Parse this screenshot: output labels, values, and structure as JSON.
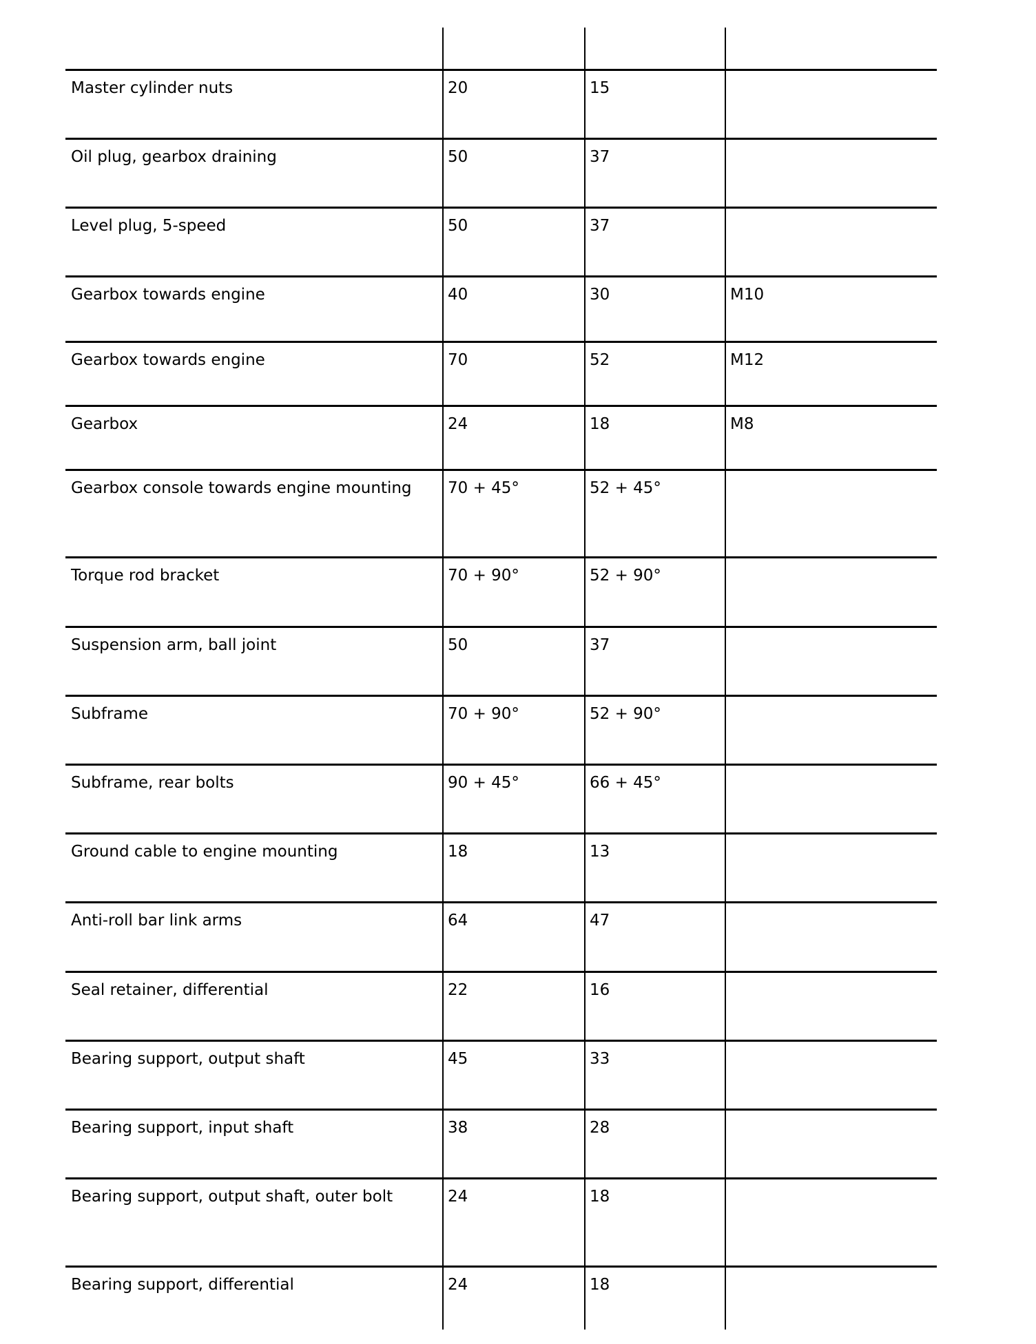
{
  "table": {
    "rows": [
      {
        "item": "Master cylinder nuts",
        "nm": "20",
        "lbft": "15",
        "note": ""
      },
      {
        "item": "Oil plug, gearbox draining",
        "nm": "50",
        "lbft": "37",
        "note": ""
      },
      {
        "item": "Level plug, 5-speed",
        "nm": "50",
        "lbft": "37",
        "note": ""
      },
      {
        "item": "Gearbox towards engine",
        "nm": "40",
        "lbft": "30",
        "note": "M10"
      },
      {
        "item": "Gearbox towards engine",
        "nm": "70",
        "lbft": "52",
        "note": "M12"
      },
      {
        "item": "Gearbox",
        "nm": "24",
        "lbft": "18",
        "note": "M8"
      },
      {
        "item": "Gearbox console towards engine mounting",
        "nm": "70 + 45°",
        "lbft": "52 + 45°",
        "note": ""
      },
      {
        "item": "Torque rod bracket",
        "nm": "70 + 90°",
        "lbft": "52 + 90°",
        "note": ""
      },
      {
        "item": "Suspension arm, ball joint",
        "nm": "50",
        "lbft": "37",
        "note": ""
      },
      {
        "item": "Subframe",
        "nm": "70 + 90°",
        "lbft": "52 + 90°",
        "note": ""
      },
      {
        "item": "Subframe, rear bolts",
        "nm": "90 + 45°",
        "lbft": "66 + 45°",
        "note": ""
      },
      {
        "item": "Ground cable to engine mounting",
        "nm": "18",
        "lbft": "13",
        "note": ""
      },
      {
        "item": "Anti-roll bar link arms",
        "nm": "64",
        "lbft": "47",
        "note": ""
      },
      {
        "item": "Seal retainer, differential",
        "nm": "22",
        "lbft": "16",
        "note": ""
      },
      {
        "item": "Bearing support, output shaft",
        "nm": "45",
        "lbft": "33",
        "note": ""
      },
      {
        "item": "Bearing support, input shaft",
        "nm": "38",
        "lbft": "28",
        "note": ""
      },
      {
        "item": "Bearing support, output shaft, outer bolt",
        "nm": "24",
        "lbft": "18",
        "note": ""
      },
      {
        "item": "Bearing support, differential",
        "nm": "24",
        "lbft": "18",
        "note": ""
      }
    ]
  }
}
